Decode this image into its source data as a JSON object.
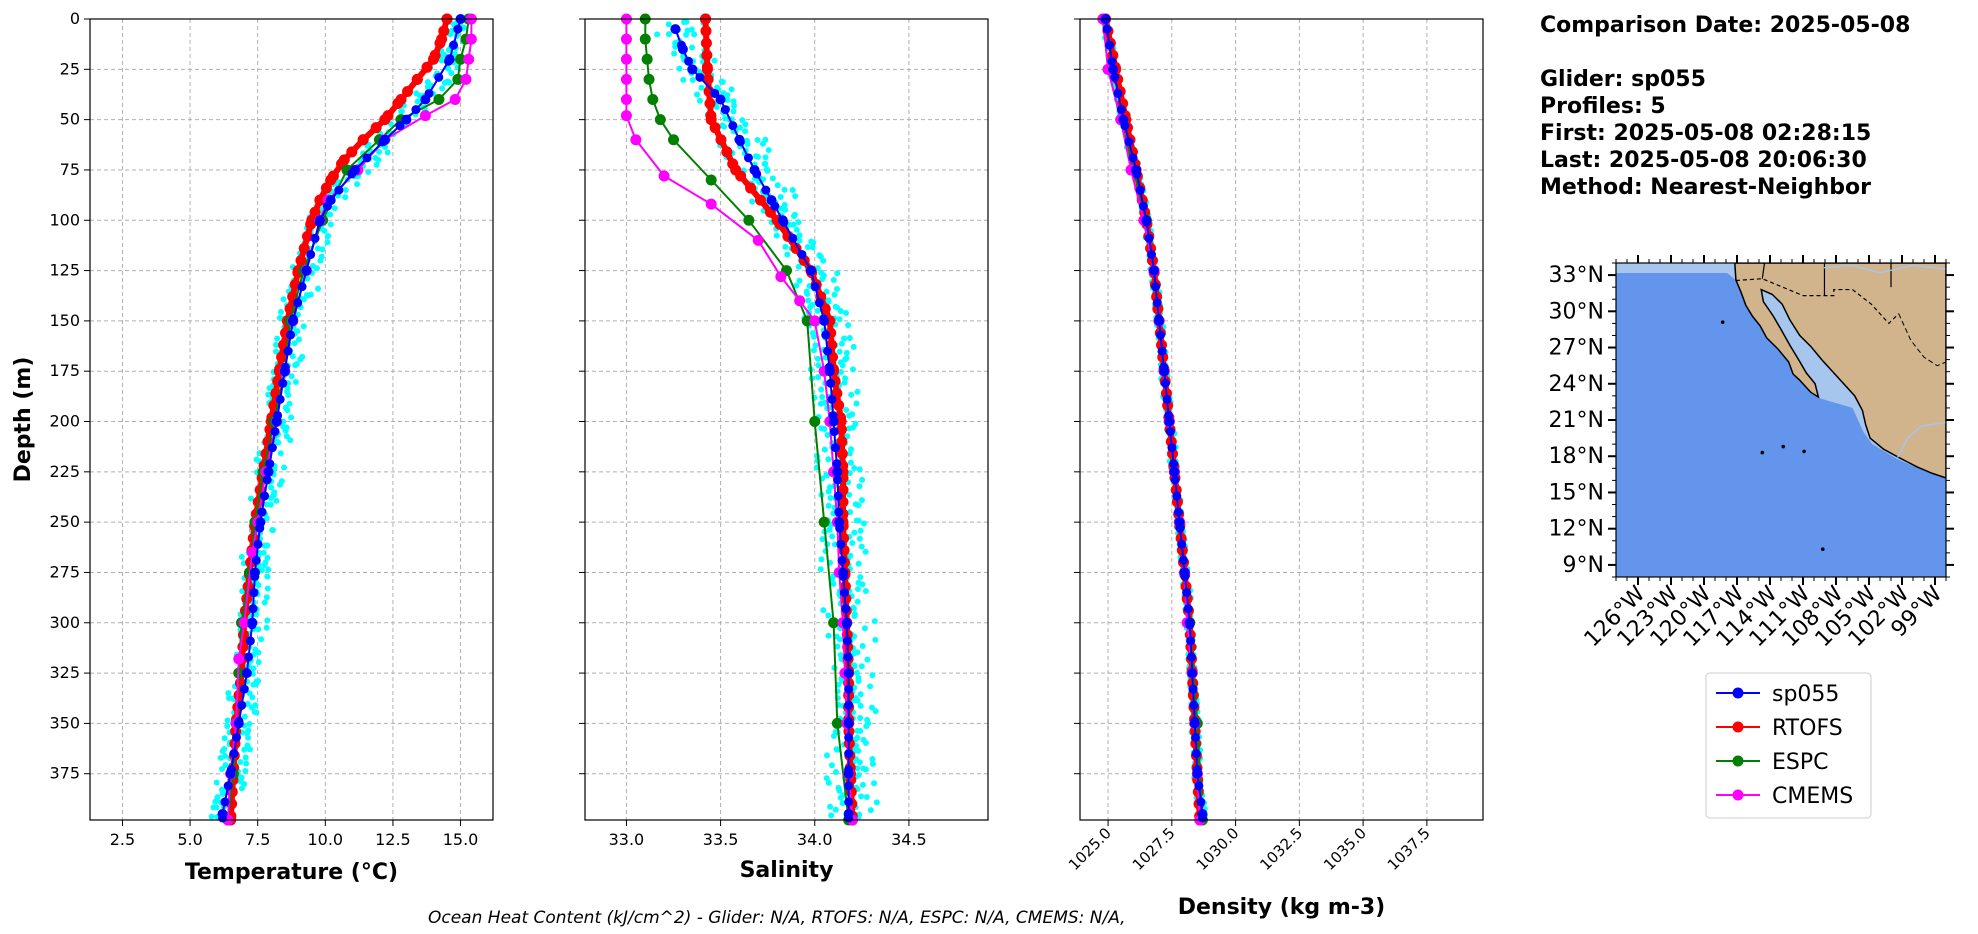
{
  "info": {
    "comparison_date": "Comparison Date: 2025-05-08",
    "glider": "Glider: sp055",
    "profiles": "Profiles: 5",
    "first": "First: 2025-05-08 02:28:15",
    "last": "Last: 2025-05-08 20:06:30",
    "method": "Method: Nearest-Neighbor"
  },
  "footer": "Ocean Heat Content (kJ/cm^2) - Glider: N/A,  RTOFS: N/A,  ESPC: N/A,  CMEMS: N/A,",
  "colors": {
    "sp055": "#0000ff",
    "RTOFS": "#ff0000",
    "ESPC": "#008000",
    "CMEMS": "#ff00ff",
    "raw": "#00ffff",
    "ocean": "#6495ed",
    "land": "#d2b48c",
    "shelf": "#a7c6ed"
  },
  "legend": [
    "sp055",
    "RTOFS",
    "ESPC",
    "CMEMS"
  ],
  "map": {
    "lat_labels": [
      "33°N",
      "30°N",
      "27°N",
      "24°N",
      "21°N",
      "18°N",
      "15°N",
      "12°N",
      "9°N"
    ],
    "lon_labels": [
      "126°W",
      "123°W",
      "120°W",
      "117°W",
      "114°W",
      "111°W",
      "108°W",
      "105°W",
      "102°W",
      "99°W"
    ]
  },
  "chart_data": [
    {
      "type": "line",
      "xlabel": "Temperature (°C)",
      "ylabel": "Depth (m)",
      "xlim": [
        1.3,
        16.2
      ],
      "ylim": [
        398,
        0
      ],
      "xticks": [
        "2.5",
        "5.0",
        "7.5",
        "10.0",
        "12.5",
        "15.0"
      ],
      "yticks": [
        "0",
        "25",
        "50",
        "75",
        "100",
        "125",
        "150",
        "175",
        "200",
        "225",
        "250",
        "275",
        "300",
        "325",
        "350",
        "375"
      ],
      "grid": true,
      "series": [
        {
          "name": "sp055",
          "depth": [
            0,
            20,
            40,
            50,
            60,
            75,
            90,
            100,
            125,
            150,
            175,
            200,
            225,
            250,
            275,
            300,
            325,
            350,
            375,
            395
          ],
          "values": [
            15.0,
            14.6,
            13.7,
            13.0,
            12.2,
            11.1,
            10.2,
            9.8,
            9.3,
            8.8,
            8.5,
            8.2,
            7.9,
            7.6,
            7.4,
            7.3,
            7.1,
            6.8,
            6.5,
            6.2
          ]
        },
        {
          "name": "RTOFS",
          "depth": [
            0,
            10,
            20,
            30,
            40,
            50,
            60,
            70,
            80,
            90,
            100,
            125,
            150,
            175,
            200,
            225,
            250,
            275,
            300,
            325,
            350,
            375,
            398
          ],
          "values": [
            14.5,
            14.3,
            14.0,
            13.4,
            12.8,
            12.2,
            11.4,
            10.7,
            10.2,
            9.8,
            9.5,
            9.0,
            8.6,
            8.3,
            8.0,
            7.7,
            7.4,
            7.2,
            7.0,
            6.9,
            6.7,
            6.6,
            6.5
          ]
        },
        {
          "name": "ESPC",
          "depth": [
            0,
            10,
            20,
            30,
            40,
            50,
            60,
            75,
            100,
            125,
            150,
            175,
            200,
            225,
            250,
            275,
            300,
            325,
            350,
            375,
            398
          ],
          "values": [
            15.3,
            15.2,
            15.0,
            14.9,
            14.2,
            12.8,
            12.0,
            10.8,
            9.9,
            9.2,
            8.7,
            8.5,
            8.1,
            7.7,
            7.4,
            7.2,
            6.9,
            6.8,
            6.7,
            6.6,
            6.4
          ]
        },
        {
          "name": "CMEMS",
          "depth": [
            0,
            10,
            20,
            30,
            40,
            48,
            60,
            75,
            90,
            100,
            125,
            150,
            175,
            200,
            225,
            250,
            265,
            300,
            318,
            350,
            375,
            398
          ],
          "values": [
            15.4,
            15.4,
            15.3,
            15.2,
            14.8,
            13.7,
            12.2,
            11.2,
            10.1,
            9.8,
            9.3,
            8.8,
            8.5,
            8.2,
            7.8,
            7.5,
            7.3,
            7.0,
            6.8,
            6.7,
            6.5,
            6.4
          ]
        }
      ]
    },
    {
      "type": "line",
      "xlabel": "Salinity",
      "xlim": [
        32.78,
        34.92
      ],
      "ylim": [
        398,
        0
      ],
      "xticks": [
        "33.0",
        "33.5",
        "34.0",
        "34.5"
      ],
      "grid": true,
      "series": [
        {
          "name": "sp055",
          "depth": [
            5,
            15,
            25,
            40,
            60,
            75,
            90,
            100,
            125,
            150,
            175,
            200,
            225,
            250,
            275,
            300,
            325,
            350,
            375,
            395
          ],
          "values": [
            33.26,
            33.3,
            33.35,
            33.5,
            33.6,
            33.68,
            33.77,
            33.83,
            33.98,
            34.05,
            34.08,
            34.1,
            34.12,
            34.13,
            34.15,
            34.17,
            34.18,
            34.18,
            34.18,
            34.18
          ]
        },
        {
          "name": "RTOFS",
          "depth": [
            0,
            25,
            50,
            75,
            100,
            125,
            150,
            175,
            200,
            225,
            250,
            275,
            300,
            325,
            350,
            375,
            398
          ],
          "values": [
            33.42,
            33.43,
            33.45,
            33.58,
            33.8,
            33.98,
            34.08,
            34.1,
            34.14,
            34.15,
            34.15,
            34.16,
            34.17,
            34.18,
            34.18,
            34.19,
            34.2
          ]
        },
        {
          "name": "ESPC",
          "depth": [
            0,
            10,
            20,
            30,
            40,
            50,
            60,
            80,
            100,
            125,
            150,
            200,
            250,
            300,
            350,
            398
          ],
          "values": [
            33.1,
            33.1,
            33.11,
            33.12,
            33.14,
            33.18,
            33.25,
            33.45,
            33.65,
            33.85,
            33.96,
            34.0,
            34.05,
            34.1,
            34.12,
            34.18
          ]
        },
        {
          "name": "CMEMS",
          "depth": [
            0,
            10,
            20,
            30,
            40,
            48,
            60,
            78,
            92,
            110,
            128,
            140,
            150,
            175,
            200,
            225,
            250,
            275,
            300,
            325,
            350,
            375,
            398
          ],
          "values": [
            33.0,
            33.0,
            33.0,
            33.0,
            33.0,
            33.0,
            33.05,
            33.2,
            33.45,
            33.7,
            33.82,
            33.92,
            34.0,
            34.05,
            34.08,
            34.1,
            34.12,
            34.13,
            34.15,
            34.16,
            34.17,
            34.18,
            34.2
          ]
        }
      ]
    },
    {
      "type": "line",
      "xlabel": "Density (kg m-3)",
      "xlim": [
        1023.9,
        1039.7
      ],
      "ylim": [
        398,
        0
      ],
      "xticks": [
        "1025.0",
        "1027.5",
        "1030.0",
        "1032.5",
        "1035.0",
        "1037.5"
      ],
      "grid": true,
      "series": [
        {
          "name": "sp055",
          "depth": [
            0,
            25,
            50,
            75,
            100,
            125,
            150,
            175,
            200,
            225,
            250,
            275,
            300,
            325,
            350,
            375,
            395
          ],
          "values": [
            1024.9,
            1025.2,
            1025.6,
            1026.1,
            1026.5,
            1026.8,
            1027.0,
            1027.2,
            1027.4,
            1027.6,
            1027.8,
            1028.0,
            1028.2,
            1028.3,
            1028.4,
            1028.5,
            1028.7
          ]
        },
        {
          "name": "RTOFS",
          "depth": [
            0,
            25,
            50,
            75,
            100,
            125,
            150,
            175,
            200,
            225,
            250,
            275,
            300,
            325,
            350,
            375,
            398
          ],
          "values": [
            1024.9,
            1025.3,
            1025.7,
            1026.1,
            1026.5,
            1026.8,
            1027.0,
            1027.2,
            1027.4,
            1027.6,
            1027.8,
            1028.0,
            1028.2,
            1028.3,
            1028.4,
            1028.5,
            1028.6
          ]
        },
        {
          "name": "ESPC",
          "depth": [
            0,
            25,
            50,
            75,
            100,
            125,
            150,
            175,
            200,
            250,
            300,
            350,
            398
          ],
          "values": [
            1024.8,
            1025.0,
            1025.5,
            1026.0,
            1026.5,
            1026.8,
            1027.0,
            1027.2,
            1027.4,
            1027.8,
            1028.2,
            1028.5,
            1028.7
          ]
        },
        {
          "name": "CMEMS",
          "depth": [
            0,
            25,
            50,
            75,
            100,
            125,
            150,
            175,
            200,
            225,
            250,
            275,
            300,
            325,
            350,
            375,
            398
          ],
          "values": [
            1024.8,
            1025.0,
            1025.5,
            1025.9,
            1026.4,
            1026.8,
            1027.0,
            1027.2,
            1027.4,
            1027.6,
            1027.8,
            1028.0,
            1028.1,
            1028.3,
            1028.4,
            1028.5,
            1028.6
          ]
        }
      ]
    }
  ]
}
